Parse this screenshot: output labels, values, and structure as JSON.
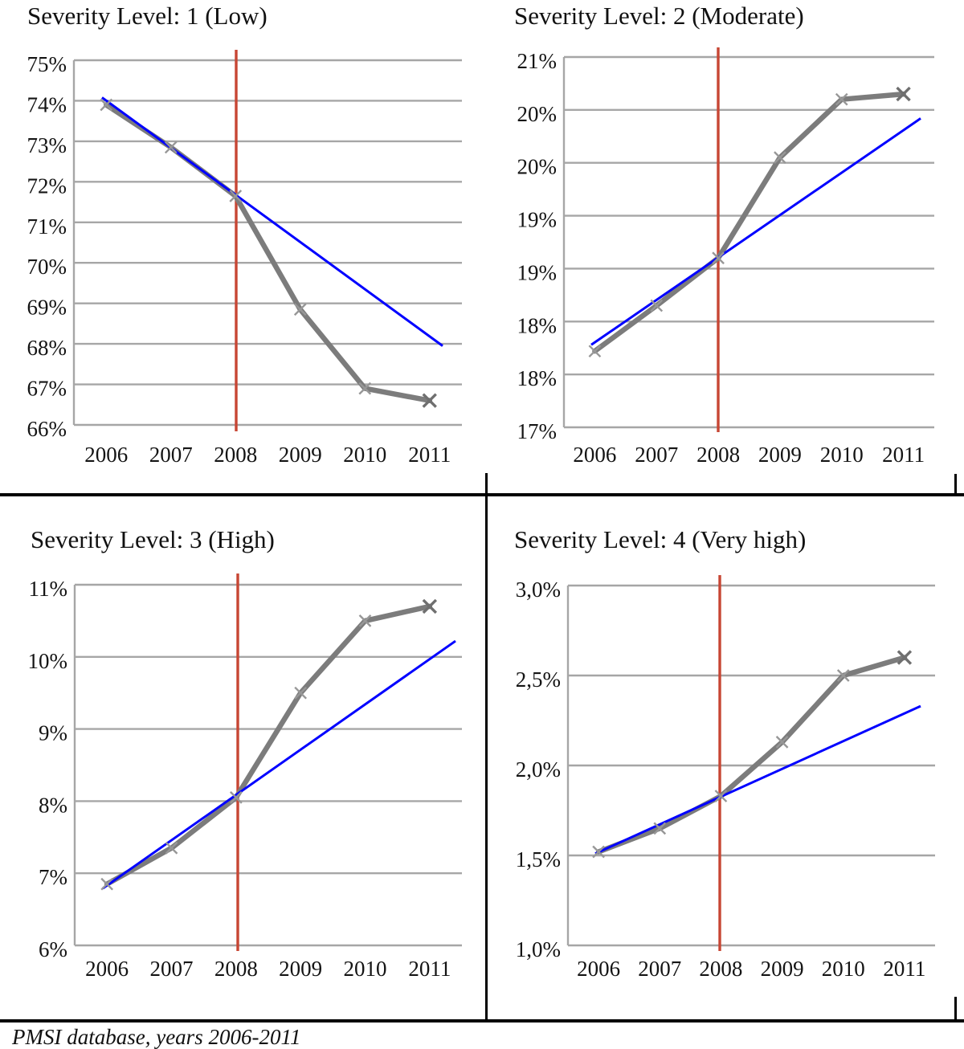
{
  "caption": "PMSI database, years 2006-2011",
  "colors": {
    "series_gray": "#7C7C7C",
    "marker_gray": "#979797",
    "marker_end_gray": "#6F6F6F",
    "trend_blue": "#0000FF",
    "reference_red": "#C74634",
    "gridline_gray": "#A6A6A6",
    "text_black": "#141414",
    "frame_black": "#000000"
  },
  "chart_data": [
    {
      "type": "line",
      "title": "Severity Level: 1 (Low)",
      "x": [
        "2006",
        "2007",
        "2008",
        "2009",
        "2010",
        "2011"
      ],
      "y_tick_labels": [
        "75%",
        "74%",
        "73%",
        "72%",
        "71%",
        "70%",
        "69%",
        "68%",
        "67%",
        "66%"
      ],
      "y_tick_values": [
        75,
        74,
        73,
        72,
        71,
        70,
        69,
        68,
        67,
        66
      ],
      "y_top": 75,
      "y_bottom": 66,
      "ylabel_format": "percent",
      "grid": "horizontal",
      "legend": "none",
      "series": [
        {
          "name": "observed_share",
          "values": [
            73.9,
            72.85,
            71.65,
            68.85,
            66.9,
            66.6
          ]
        },
        {
          "name": "linear_trend",
          "endpoints": [
            74.08,
            67.95
          ]
        }
      ],
      "reference_line": {
        "orientation": "vertical",
        "x": "2008"
      }
    },
    {
      "type": "line",
      "title": "Severity Level: 2 (Moderate)",
      "x": [
        "2006",
        "2007",
        "2008",
        "2009",
        "2010",
        "2011"
      ],
      "y_tick_labels": [
        "21%",
        "20%",
        "20%",
        "19%",
        "19%",
        "18%",
        "18%",
        "17%"
      ],
      "y_tick_values": [
        21,
        20.5,
        20,
        19.5,
        19,
        18.5,
        18,
        17.5
      ],
      "y_top": 21,
      "y_bottom": 17.5,
      "ylabel_format": "percent",
      "grid": "horizontal",
      "legend": "none",
      "series": [
        {
          "name": "observed_share",
          "values": [
            18.22,
            18.65,
            19.1,
            20.05,
            20.6,
            20.65
          ]
        },
        {
          "name": "linear_trend",
          "endpoints": [
            18.28,
            20.42
          ]
        }
      ],
      "reference_line": {
        "orientation": "vertical",
        "x": "2008"
      }
    },
    {
      "type": "line",
      "title": "Severity Level: 3 (High)",
      "x": [
        "2006",
        "2007",
        "2008",
        "2009",
        "2010",
        "2011"
      ],
      "y_tick_labels": [
        "11%",
        "10%",
        "9%",
        "8%",
        "7%",
        "6%"
      ],
      "y_tick_values": [
        11,
        10,
        9,
        8,
        7,
        6
      ],
      "y_top": 11,
      "y_bottom": 6,
      "ylabel_format": "percent",
      "grid": "horizontal",
      "legend": "none",
      "series": [
        {
          "name": "observed_share",
          "values": [
            6.85,
            7.35,
            8.05,
            9.5,
            10.5,
            10.7
          ]
        },
        {
          "name": "linear_trend",
          "endpoints": [
            6.79,
            10.22
          ]
        }
      ],
      "reference_line": {
        "orientation": "vertical",
        "x": "2008"
      }
    },
    {
      "type": "line",
      "title": "Severity Level: 4 (Very high)",
      "x": [
        "2006",
        "2007",
        "2008",
        "2009",
        "2010",
        "2011"
      ],
      "y_tick_labels": [
        "3,0%",
        "2,5%",
        "2,0%",
        "1,5%",
        "1,0%"
      ],
      "y_tick_values": [
        3.0,
        2.5,
        2.0,
        1.5,
        1.0
      ],
      "y_top": 3.0,
      "y_bottom": 1.0,
      "ylabel_format": "percent_comma_decimal",
      "grid": "horizontal",
      "legend": "none",
      "series": [
        {
          "name": "observed_share",
          "values": [
            1.52,
            1.65,
            1.83,
            2.13,
            2.5,
            2.6
          ]
        },
        {
          "name": "linear_trend",
          "endpoints": [
            1.51,
            2.33
          ]
        }
      ],
      "reference_line": {
        "orientation": "vertical",
        "x": "2008"
      }
    }
  ]
}
